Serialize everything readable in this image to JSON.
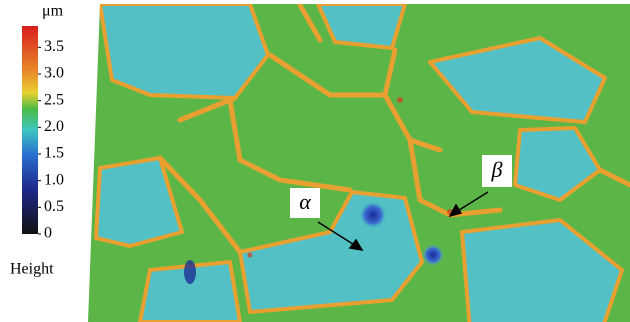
{
  "colorbar": {
    "unit": "μm",
    "label": "Height",
    "ylim": [
      0,
      3.9
    ],
    "ticks": [
      0,
      {
        "value": 0.5,
        "label": "0.5"
      },
      {
        "value": 1.0,
        "label": "1.0"
      },
      {
        "value": 1.5,
        "label": "1.5"
      },
      {
        "value": 2.0,
        "label": "2.0"
      },
      {
        "value": 2.5,
        "label": "2.5"
      },
      {
        "value": 3.0,
        "label": "3.0"
      },
      {
        "value": 3.5,
        "label": "3.5"
      }
    ]
  },
  "annotations": [
    "α",
    "β"
  ]
}
